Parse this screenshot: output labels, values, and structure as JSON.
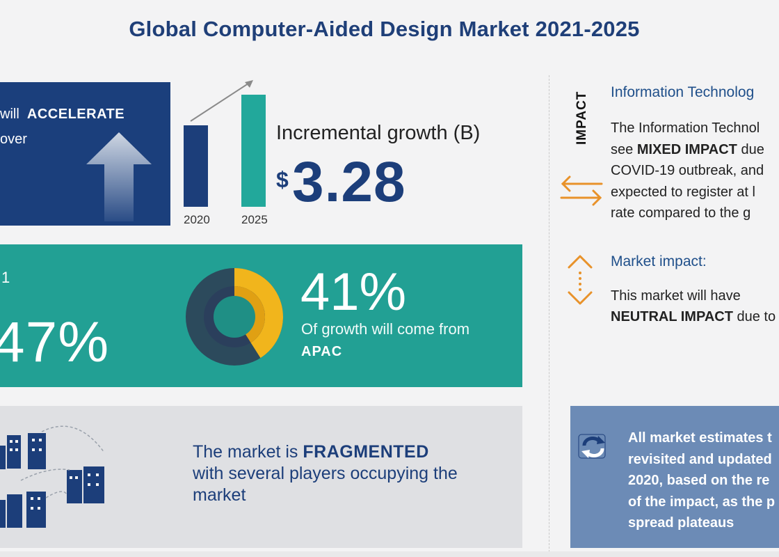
{
  "title": "Global Computer-Aided Design Market 2021-2025",
  "accelerate": {
    "line1_prefix": "will",
    "line1_bold": "ACCELERATE",
    "line2": "over"
  },
  "bars": {
    "year_2020": "2020",
    "year_2025": "2025"
  },
  "incremental": {
    "label": "Incremental growth (B)",
    "currency": "$",
    "value": "3.28"
  },
  "teal_band": {
    "left_fragment": "1",
    "left_pct": "47%",
    "right_pct": "41%",
    "growth_from": "Of growth will come from",
    "region": "APAC"
  },
  "fragmented": {
    "prefix": "The market is",
    "bold": "FRAGMENTED",
    "line2": "with several players occupying the",
    "line3": "market"
  },
  "impact_label": "IMPACT",
  "info_tech": {
    "heading": "Information Technolog",
    "line1": "The Information Technol",
    "line2_prefix": "see",
    "line2_bold": "MIXED IMPACT",
    "line2_suffix": "due",
    "line3": "COVID-19 outbreak, and",
    "line4": "expected to register at l",
    "line5": "rate compared to the g"
  },
  "market_impact": {
    "heading": "Market impact:",
    "line1": "This market will have",
    "line2_bold": "NEUTRAL IMPACT",
    "line2_suffix": "due to"
  },
  "estimates": {
    "line1": "All market estimates t",
    "line2": "revisited and updated",
    "line3": "2020, based on the re",
    "line4": "of the impact, as the p",
    "line5": "spread plateaus"
  },
  "colors": {
    "navy": "#1b3f7c",
    "teal": "#22a094",
    "orange": "#e8922a",
    "donut_yellow": "#f1b51c",
    "slate_blue": "#6c8bb6"
  },
  "chart_data": {
    "type": "donut",
    "values": [
      41,
      59
    ],
    "labels": [
      "APAC",
      ""
    ]
  }
}
